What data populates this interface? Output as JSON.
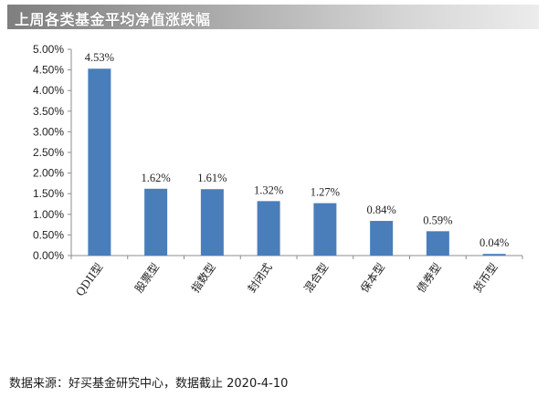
{
  "chart_data": {
    "type": "bar",
    "title": "上周各类基金平均净值涨跌幅",
    "categories": [
      "QDII型",
      "股票型",
      "指数型",
      "封闭式",
      "混合型",
      "保本型",
      "债券型",
      "货币型"
    ],
    "values": [
      4.53,
      1.62,
      1.61,
      1.32,
      1.27,
      0.84,
      0.59,
      0.04
    ],
    "unit": "%",
    "data_labels": [
      "4.53%",
      "1.62%",
      "1.61%",
      "1.32%",
      "1.27%",
      "0.84%",
      "0.59%",
      "0.04%"
    ],
    "yticks": [
      0,
      0.5,
      1,
      1.5,
      2,
      2.5,
      3,
      3.5,
      4,
      4.5,
      5
    ],
    "ytick_labels": [
      "0.00%",
      "0.50%",
      "1.00%",
      "1.50%",
      "2.00%",
      "2.50%",
      "3.00%",
      "3.50%",
      "4.00%",
      "4.50%",
      "5.00%"
    ],
    "ylim": [
      0,
      5
    ],
    "xlabel": "",
    "ylabel": "",
    "grid": false,
    "legend": "none",
    "bar_color": "#4a7ebb",
    "axis_color": "#8c8c8c"
  },
  "footer": {
    "source": "数据来源：好买基金研究中心，数据截止 2020-4-10"
  }
}
